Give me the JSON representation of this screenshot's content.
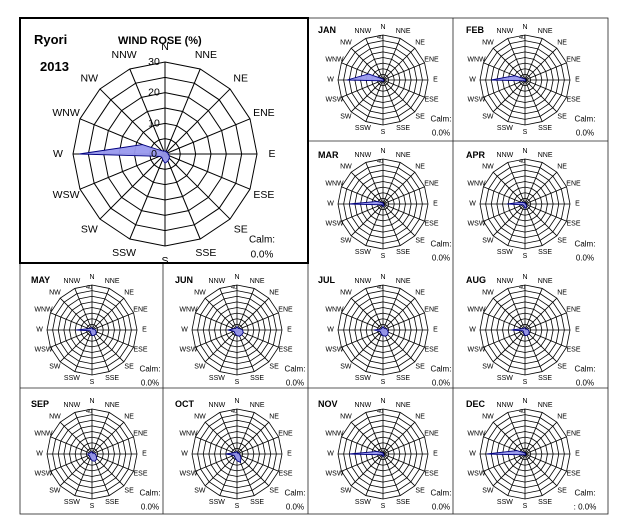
{
  "station": "Ryori",
  "year": "2013",
  "chart_title": "WIND ROSE (%)",
  "calm_label": "Calm:",
  "fill_color": "#9999ee",
  "stroke_color": "#000080",
  "directions": [
    "N",
    "NNE",
    "NE",
    "ENE",
    "E",
    "ESE",
    "SE",
    "SSE",
    "S",
    "SSW",
    "SW",
    "WSW",
    "W",
    "WNW",
    "NW",
    "NNW"
  ],
  "chart_data": [
    {
      "type": "radar",
      "panel": "annual",
      "title": "WIND ROSE (%)",
      "rlim": [
        0,
        30
      ],
      "rticks": [
        "0",
        "10",
        "20",
        "30"
      ],
      "calm": "0.0%",
      "values": [
        1.0,
        0.8,
        0.8,
        1.0,
        1.0,
        1.5,
        2.0,
        2.5,
        3.0,
        2.0,
        1.5,
        2.0,
        28.0,
        8.0,
        1.5,
        1.0
      ]
    },
    {
      "type": "radar",
      "panel": "month",
      "label": "JAN",
      "rlim": [
        0,
        40
      ],
      "calm": "0.0%",
      "values": [
        1.0,
        0.5,
        0.5,
        0.5,
        0.5,
        0.5,
        1.0,
        1.0,
        1.0,
        1.0,
        1.0,
        2.0,
        32.0,
        14.0,
        2.0,
        1.0
      ]
    },
    {
      "type": "radar",
      "panel": "month",
      "label": "FEB",
      "rlim": [
        0,
        40
      ],
      "calm": "0.0%",
      "values": [
        1.0,
        0.5,
        0.5,
        0.5,
        0.5,
        0.5,
        1.0,
        1.0,
        1.0,
        1.0,
        1.0,
        2.0,
        30.0,
        10.0,
        2.0,
        1.0
      ]
    },
    {
      "type": "radar",
      "panel": "month",
      "label": "MAR",
      "rlim": [
        0,
        40
      ],
      "calm": "0.0%",
      "values": [
        1.0,
        0.5,
        0.5,
        0.5,
        0.5,
        0.5,
        1.0,
        2.0,
        2.0,
        1.0,
        1.0,
        2.0,
        30.0,
        6.0,
        2.0,
        1.0
      ]
    },
    {
      "type": "radar",
      "panel": "month",
      "label": "APR",
      "rlim": [
        0,
        40
      ],
      "calm": "0.0%",
      "values": [
        1.0,
        0.5,
        0.5,
        0.5,
        0.5,
        1.0,
        2.0,
        3.0,
        4.0,
        2.0,
        2.0,
        2.0,
        16.0,
        4.0,
        2.0,
        1.0
      ]
    },
    {
      "type": "radar",
      "panel": "month",
      "label": "MAY",
      "rlim": [
        0,
        40
      ],
      "calm": "0.0%",
      "values": [
        2.0,
        1.0,
        1.0,
        2.0,
        3.0,
        4.0,
        5.0,
        5.0,
        5.0,
        3.0,
        2.0,
        2.0,
        14.0,
        3.0,
        2.0,
        2.0
      ]
    },
    {
      "type": "radar",
      "panel": "month",
      "label": "JUN",
      "rlim": [
        0,
        40
      ],
      "calm": "0.0%",
      "values": [
        3.0,
        2.0,
        2.0,
        3.0,
        5.0,
        6.0,
        6.0,
        6.0,
        5.0,
        4.0,
        3.0,
        3.0,
        8.0,
        3.0,
        2.0,
        2.0
      ]
    },
    {
      "type": "radar",
      "panel": "month",
      "label": "JUL",
      "rlim": [
        0,
        40
      ],
      "calm": "0.0%",
      "values": [
        3.0,
        2.0,
        2.0,
        3.0,
        4.0,
        5.0,
        6.0,
        6.0,
        5.0,
        4.0,
        3.0,
        3.0,
        8.0,
        2.0,
        2.0,
        2.0
      ]
    },
    {
      "type": "radar",
      "panel": "month",
      "label": "AUG",
      "rlim": [
        0,
        40
      ],
      "calm": "0.0%",
      "values": [
        2.0,
        1.0,
        1.0,
        2.0,
        3.0,
        4.0,
        5.0,
        5.0,
        5.0,
        3.0,
        2.0,
        2.0,
        12.0,
        3.0,
        2.0,
        2.0
      ]
    },
    {
      "type": "radar",
      "panel": "month",
      "label": "SEP",
      "rlim": [
        0,
        40
      ],
      "calm": "0.0%",
      "values": [
        2.0,
        1.0,
        1.0,
        2.0,
        3.0,
        4.0,
        6.0,
        7.0,
        6.0,
        4.0,
        3.0,
        3.0,
        4.0,
        2.0,
        2.0,
        2.0
      ]
    },
    {
      "type": "radar",
      "panel": "month",
      "label": "OCT",
      "rlim": [
        0,
        40
      ],
      "calm": "0.0%",
      "values": [
        2.0,
        1.0,
        1.0,
        2.0,
        2.0,
        3.0,
        5.0,
        8.0,
        6.0,
        4.0,
        3.0,
        3.0,
        10.0,
        3.0,
        2.0,
        2.0
      ]
    },
    {
      "type": "radar",
      "panel": "month",
      "label": "NOV",
      "rlim": [
        0,
        40
      ],
      "calm": "0.0%",
      "values": [
        1.0,
        0.5,
        0.5,
        0.5,
        0.5,
        0.5,
        1.0,
        2.0,
        2.0,
        1.0,
        1.0,
        2.0,
        30.0,
        6.0,
        2.0,
        1.0
      ]
    },
    {
      "type": "radar",
      "panel": "month",
      "label": "DEC",
      "rlim": [
        0,
        40
      ],
      "calm": ": 0.0%",
      "values": [
        1.0,
        0.5,
        0.5,
        0.5,
        0.5,
        0.5,
        1.0,
        1.0,
        1.0,
        1.0,
        1.0,
        2.0,
        34.0,
        8.0,
        2.0,
        1.0
      ]
    }
  ]
}
